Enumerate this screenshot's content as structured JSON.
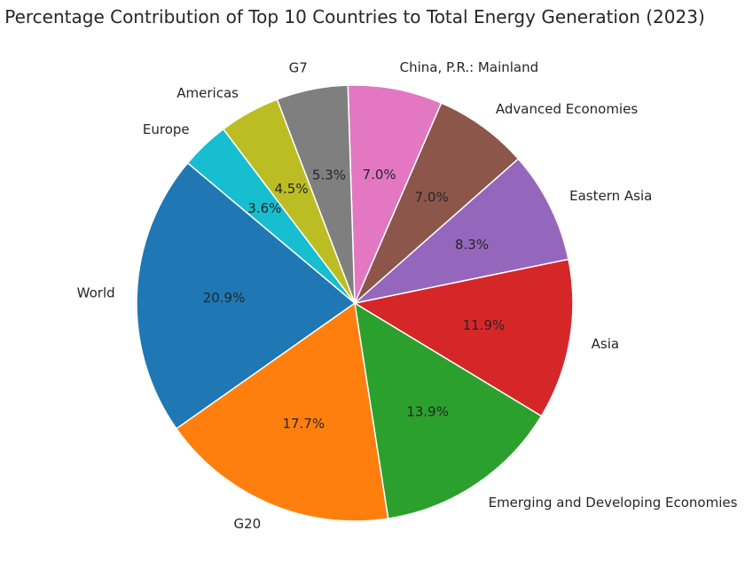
{
  "chart_data": {
    "type": "pie",
    "title": "Percentage Contribution of Top 10 Countries to Total Energy Generation (2023)",
    "start_angle_deg": 140,
    "direction": "counterclockwise",
    "categories": [
      "World",
      "G20",
      "Emerging and Developing Economies",
      "Asia",
      "Eastern Asia",
      "Advanced Economies",
      "China, P.R.: Mainland",
      "G7",
      "Americas",
      "Europe"
    ],
    "values": [
      20.9,
      17.7,
      13.9,
      11.9,
      8.3,
      7.0,
      7.0,
      5.3,
      4.5,
      3.6
    ],
    "value_labels": [
      "20.9%",
      "17.7%",
      "13.9%",
      "11.9%",
      "8.3%",
      "7.0%",
      "7.0%",
      "5.3%",
      "4.5%",
      "3.6%"
    ],
    "colors": [
      "#1f77b4",
      "#ff7f0e",
      "#2ca02c",
      "#d62728",
      "#9467bd",
      "#8c564b",
      "#e377c2",
      "#7f7f7f",
      "#bcbd22",
      "#17becf"
    ]
  }
}
